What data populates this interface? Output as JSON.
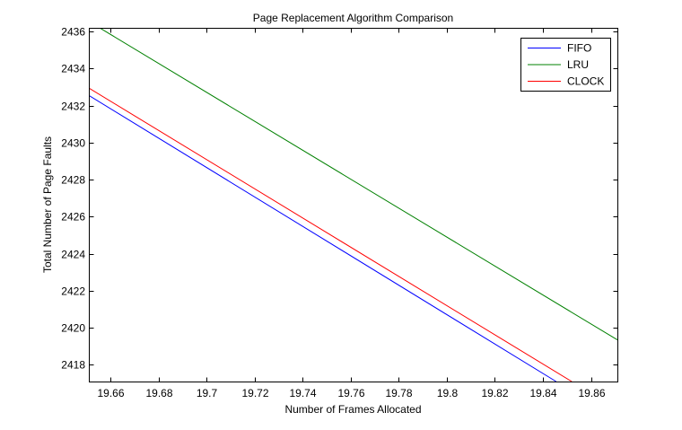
{
  "chart_data": {
    "type": "line",
    "title": "Page Replacement Algorithm Comparison",
    "xlabel": "Number of Frames Allocated",
    "ylabel": "Total Number of Page Faults",
    "xlim": [
      19.651,
      19.871
    ],
    "ylim": [
      2417.1,
      2436.2
    ],
    "xticks": [
      19.66,
      19.68,
      19.7,
      19.72,
      19.74,
      19.76,
      19.78,
      19.8,
      19.82,
      19.84,
      19.86
    ],
    "xtick_labels": [
      "19.66",
      "19.68",
      "19.7",
      "19.72",
      "19.74",
      "19.76",
      "19.78",
      "19.8",
      "19.82",
      "19.84",
      "19.86"
    ],
    "yticks": [
      2418,
      2420,
      2422,
      2424,
      2426,
      2428,
      2430,
      2432,
      2434,
      2436
    ],
    "ytick_labels": [
      "2418",
      "2420",
      "2422",
      "2424",
      "2426",
      "2428",
      "2430",
      "2432",
      "2434",
      "2436"
    ],
    "grid": false,
    "legend_position": "top-right",
    "series": [
      {
        "name": "FIFO",
        "color": "#0000ff",
        "x": [
          19.651,
          19.8455
        ],
        "y": [
          2432.55,
          2417.1
        ]
      },
      {
        "name": "LRU",
        "color": "#008000",
        "x": [
          19.651,
          19.871
        ],
        "y": [
          2436.55,
          2419.35
        ]
      },
      {
        "name": "CLOCK",
        "color": "#ff0000",
        "x": [
          19.651,
          19.852
        ],
        "y": [
          2432.95,
          2417.1
        ]
      }
    ]
  }
}
